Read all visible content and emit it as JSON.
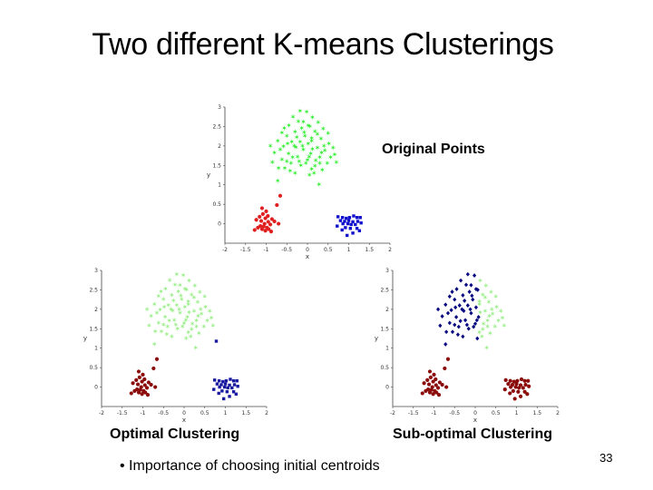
{
  "slide": {
    "title": "Two different K-means Clusterings",
    "bullet": "• Importance of choosing initial centroids",
    "page_number": "33"
  },
  "labels": {
    "original": "Original Points",
    "optimal": "Optimal Clustering",
    "suboptimal": "Sub-optimal Clustering"
  },
  "colors": {
    "green": "#33ee33",
    "red": "#e02020",
    "blue": "#1010cc",
    "light_green": "#99ee88",
    "dark_red": "#8b0a0a",
    "navy": "#0a0a80",
    "dark_blue": "#1a1aa0"
  },
  "chart_data": [
    {
      "type": "scatter",
      "name": "Original Points",
      "xlabel": "x",
      "ylabel": "y",
      "xlim": [
        -2,
        2
      ],
      "ylim": [
        -0.5,
        3
      ],
      "xticks": [
        "-2",
        "-1.5",
        "-1",
        "-0.5",
        "0",
        "0.5",
        "1",
        "1.5",
        "2"
      ],
      "yticks": [
        "0",
        "0.5",
        "1",
        "1.5",
        "2",
        "2.5",
        "3"
      ],
      "series": [
        {
          "color": "#33ee33",
          "marker": "star",
          "points": [
            [
              -0.18,
              2.9
            ],
            [
              -0.02,
              2.87
            ],
            [
              -0.35,
              2.74
            ],
            [
              0.12,
              2.73
            ],
            [
              -0.22,
              2.63
            ],
            [
              0.26,
              2.6
            ],
            [
              -0.45,
              2.52
            ],
            [
              0.02,
              2.52
            ],
            [
              -0.14,
              2.45
            ],
            [
              0.38,
              2.44
            ],
            [
              -0.62,
              2.33
            ],
            [
              -0.3,
              2.36
            ],
            [
              0.18,
              2.37
            ],
            [
              -0.5,
              2.25
            ],
            [
              -0.06,
              2.25
            ],
            [
              0.1,
              2.2
            ],
            [
              0.33,
              2.18
            ],
            [
              -0.72,
              2.12
            ],
            [
              -0.38,
              2.1
            ],
            [
              -0.18,
              2.1
            ],
            [
              0.02,
              2.05
            ],
            [
              0.52,
              2.05
            ],
            [
              -0.58,
              1.98
            ],
            [
              -0.28,
              1.96
            ],
            [
              0.24,
              1.95
            ],
            [
              -0.1,
              1.9
            ],
            [
              0.42,
              1.88
            ],
            [
              -0.8,
              1.82
            ],
            [
              -0.46,
              1.8
            ],
            [
              0.08,
              1.8
            ],
            [
              0.66,
              1.78
            ],
            [
              -0.24,
              1.72
            ],
            [
              0.3,
              1.7
            ],
            [
              -0.62,
              1.65
            ],
            [
              0.0,
              1.63
            ],
            [
              -0.4,
              1.55
            ],
            [
              0.48,
              1.55
            ],
            [
              -0.16,
              1.5
            ],
            [
              0.18,
              1.48
            ],
            [
              -0.85,
              1.58
            ],
            [
              0.7,
              1.58
            ],
            [
              -0.55,
              1.42
            ],
            [
              0.36,
              1.38
            ],
            [
              -0.3,
              1.3
            ],
            [
              0.05,
              1.25
            ],
            [
              -0.72,
              1.1
            ],
            [
              0.28,
              1.0
            ],
            [
              0.1,
              1.4
            ],
            [
              -0.08,
              2.35
            ],
            [
              -0.32,
              2.0
            ],
            [
              0.12,
              1.92
            ],
            [
              -0.48,
              2.05
            ],
            [
              0.04,
              1.72
            ],
            [
              -0.2,
              1.6
            ],
            [
              0.56,
              1.7
            ],
            [
              -0.66,
              1.9
            ],
            [
              0.24,
              2.3
            ],
            [
              -0.1,
              2.62
            ],
            [
              0.3,
              1.55
            ],
            [
              -0.5,
              1.6
            ],
            [
              0.1,
              2.12
            ],
            [
              -0.36,
              1.7
            ],
            [
              0.4,
              2.0
            ],
            [
              -0.12,
              2.0
            ],
            [
              0.2,
              1.62
            ],
            [
              -0.56,
              2.45
            ],
            [
              0.06,
              2.5
            ],
            [
              -0.26,
              2.22
            ],
            [
              0.5,
              2.32
            ],
            [
              -0.7,
              1.42
            ],
            [
              0.16,
              1.3
            ],
            [
              -0.42,
              1.35
            ],
            [
              0.34,
              1.82
            ],
            [
              -0.04,
              1.55
            ],
            [
              -0.9,
              2.0
            ],
            [
              0.62,
              1.95
            ]
          ]
        },
        {
          "color": "#e02020",
          "marker": "circle",
          "points": [
            [
              -1.08,
              0.25
            ],
            [
              -1.02,
              0.14
            ],
            [
              -1.12,
              0.07
            ],
            [
              -0.95,
              0.05
            ],
            [
              -1.04,
              0.0
            ],
            [
              -0.9,
              -0.02
            ],
            [
              -1.06,
              -0.07
            ],
            [
              -0.98,
              -0.1
            ],
            [
              -1.1,
              -0.14
            ],
            [
              -0.94,
              -0.14
            ],
            [
              -1.14,
              -0.06
            ],
            [
              -0.86,
              0.12
            ],
            [
              -1.0,
              0.32
            ],
            [
              -1.16,
              0.18
            ],
            [
              -0.8,
              0.06
            ],
            [
              -1.2,
              -0.1
            ],
            [
              -0.88,
              -0.2
            ],
            [
              -1.24,
              0.1
            ],
            [
              -0.7,
              0.0
            ],
            [
              -1.02,
              -0.18
            ],
            [
              -0.96,
              0.2
            ],
            [
              -0.74,
              0.48
            ],
            [
              -1.1,
              0.4
            ],
            [
              -0.66,
              0.72
            ],
            [
              -1.28,
              -0.16
            ]
          ]
        },
        {
          "color": "#1010cc",
          "marker": "square",
          "points": [
            [
              0.74,
              0.18
            ],
            [
              0.85,
              0.16
            ],
            [
              0.94,
              0.14
            ],
            [
              1.02,
              0.16
            ],
            [
              1.12,
              0.2
            ],
            [
              1.2,
              0.16
            ],
            [
              1.28,
              0.16
            ],
            [
              0.8,
              0.08
            ],
            [
              0.9,
              0.06
            ],
            [
              1.0,
              0.08
            ],
            [
              1.1,
              0.05
            ],
            [
              1.22,
              0.06
            ],
            [
              0.86,
              0.0
            ],
            [
              0.98,
              0.0
            ],
            [
              1.06,
              -0.02
            ],
            [
              1.16,
              -0.02
            ],
            [
              1.3,
              0.02
            ],
            [
              0.72,
              -0.06
            ],
            [
              0.92,
              -0.1
            ],
            [
              1.04,
              -0.12
            ],
            [
              1.2,
              -0.12
            ],
            [
              0.84,
              -0.16
            ],
            [
              1.1,
              -0.24
            ],
            [
              1.26,
              -0.18
            ],
            [
              0.96,
              -0.3
            ]
          ]
        }
      ]
    },
    {
      "type": "scatter",
      "name": "Optimal Clustering",
      "xlabel": "x",
      "ylabel": "y",
      "xlim": [
        -2,
        2
      ],
      "ylim": [
        -0.5,
        3
      ],
      "xticks": [
        "-2",
        "-1.5",
        "-1",
        "-0.5",
        "0",
        "0.5",
        "1",
        "1.5",
        "2"
      ],
      "yticks": [
        "0",
        "0.5",
        "1",
        "1.5",
        "2",
        "2.5",
        "3"
      ],
      "series": [
        {
          "color": "#99ee88",
          "marker": "star",
          "points": "same as Original Points green cluster"
        },
        {
          "color": "#8b0a0a",
          "marker": "circle",
          "points": "same as Original Points red cluster"
        },
        {
          "color": "#1a1aa0",
          "marker": "square",
          "points": "same as Original Points blue cluster plus [0.78, 1.18]"
        }
      ]
    },
    {
      "type": "scatter",
      "name": "Sub-optimal Clustering",
      "xlabel": "x",
      "ylabel": "y",
      "xlim": [
        -2,
        2
      ],
      "ylim": [
        -0.5,
        3
      ],
      "xticks": [
        "-2",
        "-1.5",
        "-1",
        "-0.5",
        "0",
        "0.5",
        "1",
        "1.5",
        "2"
      ],
      "yticks": [
        "0",
        "0.5",
        "1",
        "1.5",
        "2",
        "2.5",
        "3"
      ],
      "series": [
        {
          "color": "#0a0a80",
          "marker": "diamond",
          "points": "green cluster points with x < 0.1"
        },
        {
          "color": "#99ee88",
          "marker": "star",
          "points": "green cluster points with x >= 0.1"
        },
        {
          "color": "#8b0a0a",
          "marker": "circle",
          "points": "red cluster and blue cluster points"
        }
      ]
    }
  ]
}
